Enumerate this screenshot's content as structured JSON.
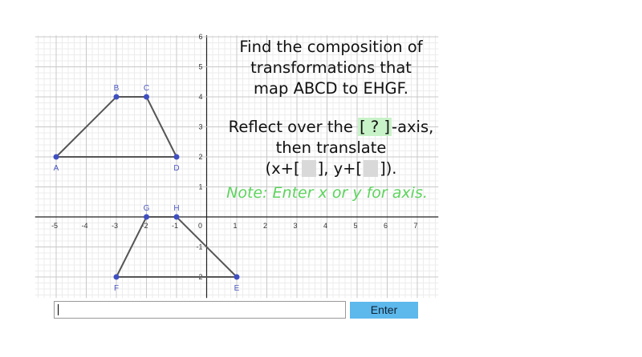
{
  "graph": {
    "xlim": [
      -5.7,
      7.7
    ],
    "ylim": [
      -2.7,
      6.05
    ],
    "xticks": [
      -5,
      -4,
      -3,
      -2,
      -1,
      0,
      1,
      2,
      3,
      4,
      5,
      6,
      7
    ],
    "yticks": [
      -2,
      -1,
      1,
      2,
      3,
      4,
      5,
      6
    ],
    "polygons": [
      {
        "points": [
          {
            "label": "A",
            "x": -5,
            "y": 2
          },
          {
            "label": "B",
            "x": -3,
            "y": 4
          },
          {
            "label": "C",
            "x": -2,
            "y": 4
          },
          {
            "label": "D",
            "x": -1,
            "y": 2
          }
        ]
      },
      {
        "points": [
          {
            "label": "E",
            "x": 1,
            "y": -2
          },
          {
            "label": "H",
            "x": -1,
            "y": 0
          },
          {
            "label": "G",
            "x": -2,
            "y": 0
          },
          {
            "label": "F",
            "x": -3,
            "y": -2
          }
        ]
      }
    ]
  },
  "prompt": {
    "lines": [
      "Find the composition of",
      "transformations that",
      "map ABCD to EHGF."
    ],
    "reflect": [
      "Reflect over the ",
      "[ ? ]",
      "-axis,"
    ],
    "translate_intro": "then translate",
    "translate": [
      "(x+[",
      "], y+[",
      "])."
    ],
    "note": "Note: Enter x or y for axis."
  },
  "input": {
    "button": "Enter"
  }
}
